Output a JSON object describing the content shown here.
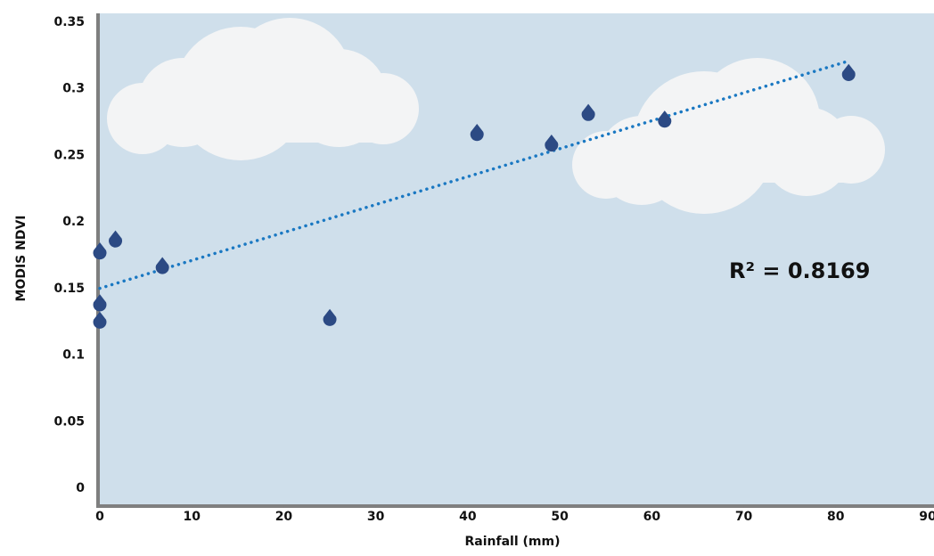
{
  "chart_data": {
    "type": "scatter",
    "x": [
      0,
      0,
      0,
      1.7,
      6.8,
      25,
      41,
      49.1,
      53.1,
      61.4,
      81.4
    ],
    "values": [
      0.178,
      0.139,
      0.126,
      0.187,
      0.167,
      0.128,
      0.267,
      0.259,
      0.282,
      0.277,
      0.312
    ],
    "color": "#2c4a84",
    "trendline": true,
    "trendline_color": "#1a78c2",
    "annotation": "R² = 0.8169",
    "x_label": "Rainfall (mm)",
    "y_label": "MODIS NDVI",
    "xlim": [
      0,
      90
    ],
    "xticks": [
      0,
      10,
      20,
      30,
      40,
      50,
      60,
      70,
      80,
      90
    ],
    "ylim": [
      0,
      0.35
    ],
    "yticks": [
      0,
      0.05,
      0.1,
      0.15,
      0.2,
      0.25,
      0.3,
      0.35
    ]
  }
}
